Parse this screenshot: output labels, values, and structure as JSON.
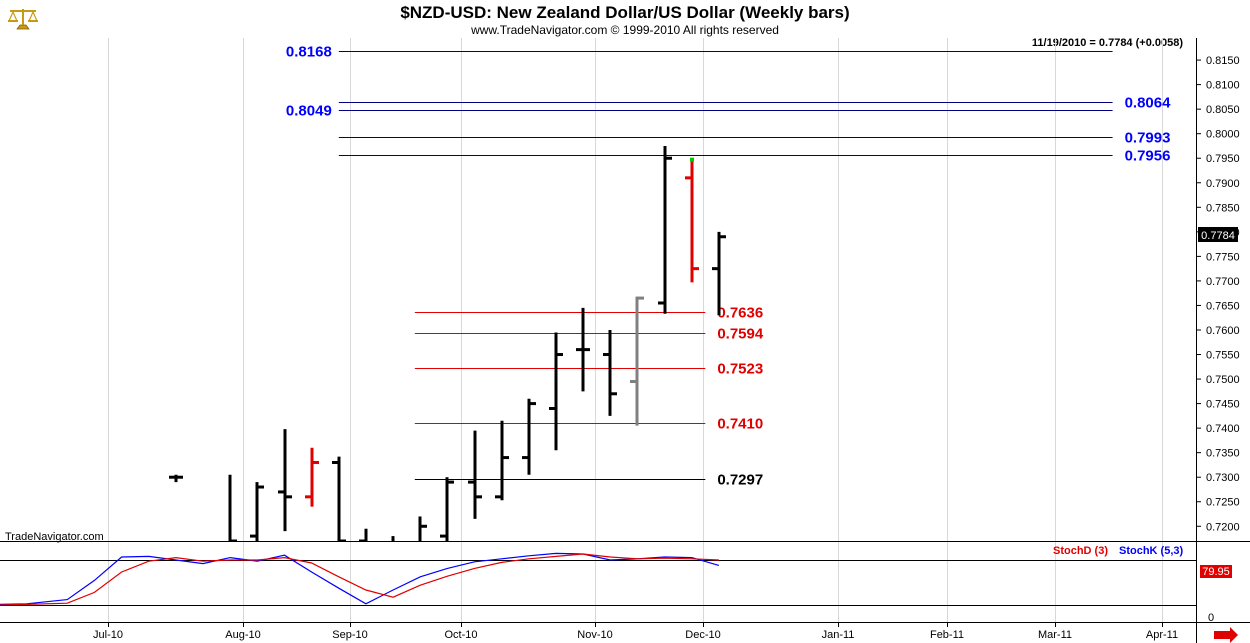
{
  "header": {
    "title": "$NZD-USD:  New Zealand Dollar/US Dollar  (Weekly bars)",
    "copyright": "www.TradeNavigator.com © 1999-2010 All rights reserved",
    "last_quote": "11/19/2010 = 0.7784 (+0.0058)",
    "watermark": "TradeNavigator.com",
    "logo_icon": "scales-logo-icon"
  },
  "colors": {
    "blue": "#0000ff",
    "red": "#e00000",
    "gray": "#808080",
    "green": "#00cc00",
    "navy": "#000080"
  },
  "chart_data": [
    {
      "type": "ohlc",
      "x_axis": {
        "labels": [
          "Jul-10",
          "Aug-10",
          "Sep-10",
          "Oct-10",
          "Nov-10",
          "Dec-10",
          "Jan-11",
          "Feb-11",
          "Mar-11",
          "Apr-11"
        ]
      },
      "y_axis": {
        "ylim": [
          0.717,
          0.8195
        ],
        "ticks": [
          "0.8150",
          "0.8100",
          "0.8050",
          "0.8000",
          "0.7950",
          "0.7900",
          "0.7850",
          "0.7800",
          "0.7750",
          "0.7700",
          "0.7650",
          "0.7600",
          "0.7550",
          "0.7500",
          "0.7450",
          "0.7400",
          "0.7350",
          "0.7300",
          "0.7250",
          "0.7200"
        ]
      },
      "last_price": "0.7784",
      "bars": [
        {
          "w": 6,
          "o": 0.73,
          "h": 0.7305,
          "l": 0.729,
          "c": 0.73,
          "color": "black"
        },
        {
          "w": 8,
          "o": 0.716,
          "h": 0.7305,
          "l": 0.714,
          "c": 0.717,
          "color": "black"
        },
        {
          "w": 9,
          "o": 0.718,
          "h": 0.729,
          "l": 0.716,
          "c": 0.728,
          "color": "black"
        },
        {
          "w": 10,
          "o": 0.727,
          "h": 0.7398,
          "l": 0.719,
          "c": 0.726,
          "color": "black"
        },
        {
          "w": 11,
          "o": 0.726,
          "h": 0.736,
          "l": 0.724,
          "c": 0.733,
          "color": "red"
        },
        {
          "w": 12,
          "o": 0.733,
          "h": 0.7342,
          "l": 0.715,
          "c": 0.717,
          "color": "black"
        },
        {
          "w": 13,
          "o": 0.717,
          "h": 0.7195,
          "l": 0.714,
          "c": 0.715,
          "color": "black"
        },
        {
          "w": 14,
          "o": 0.712,
          "h": 0.718,
          "l": 0.71,
          "c": 0.716,
          "color": "black"
        },
        {
          "w": 15,
          "o": 0.716,
          "h": 0.722,
          "l": 0.715,
          "c": 0.72,
          "color": "black"
        },
        {
          "w": 16,
          "o": 0.718,
          "h": 0.73,
          "l": 0.717,
          "c": 0.729,
          "color": "black"
        },
        {
          "w": 17,
          "o": 0.729,
          "h": 0.7395,
          "l": 0.7215,
          "c": 0.726,
          "color": "black"
        },
        {
          "w": 18,
          "o": 0.726,
          "h": 0.7415,
          "l": 0.7253,
          "c": 0.734,
          "color": "black"
        },
        {
          "w": 19,
          "o": 0.734,
          "h": 0.746,
          "l": 0.7305,
          "c": 0.745,
          "color": "black"
        },
        {
          "w": 20,
          "o": 0.744,
          "h": 0.7595,
          "l": 0.7355,
          "c": 0.755,
          "color": "black"
        },
        {
          "w": 21,
          "o": 0.756,
          "h": 0.7645,
          "l": 0.7475,
          "c": 0.756,
          "color": "black"
        },
        {
          "w": 22,
          "o": 0.755,
          "h": 0.76,
          "l": 0.7425,
          "c": 0.747,
          "color": "black"
        },
        {
          "w": 23,
          "o": 0.7495,
          "h": 0.7668,
          "l": 0.7405,
          "c": 0.7665,
          "color": "gray"
        },
        {
          "w": 24,
          "o": 0.7655,
          "h": 0.7975,
          "l": 0.7633,
          "c": 0.795,
          "color": "black"
        },
        {
          "w": 25,
          "o": 0.791,
          "h": 0.7945,
          "l": 0.7697,
          "c": 0.7725,
          "color": "red"
        },
        {
          "w": 26,
          "o": 0.7725,
          "h": 0.78,
          "l": 0.763,
          "c": 0.779,
          "color": "black"
        }
      ],
      "levels": [
        {
          "value": 0.8168,
          "label": "0.8168",
          "color": "navy",
          "label_color": "blue",
          "x1w": 12.0,
          "x2w": 40.5,
          "label_side": "left"
        },
        {
          "value": 0.8064,
          "label": "0.8064",
          "color": "navy",
          "label_color": "blue",
          "x1w": 12.0,
          "x2w": 40.5,
          "label_side": "right"
        },
        {
          "value": 0.8049,
          "label": "0.8049",
          "color": "navy",
          "label_color": "blue",
          "x1w": 12.0,
          "x2w": 40.5,
          "label_side": "left"
        },
        {
          "value": 0.7993,
          "label": "0.7993",
          "color": "navy",
          "label_color": "blue",
          "x1w": 12.0,
          "x2w": 40.5,
          "label_side": "right"
        },
        {
          "value": 0.7956,
          "label": "0.7956",
          "color": "navy",
          "label_color": "blue",
          "x1w": 12.0,
          "x2w": 40.5,
          "label_side": "right"
        },
        {
          "value": 0.7636,
          "label": "0.7636",
          "color": "red",
          "label_color": "red",
          "x1w": 14.8,
          "x2w": 25.5,
          "label_side": "right"
        },
        {
          "value": 0.7594,
          "label": "0.7594",
          "color": "red",
          "label_color": "red",
          "x1w": 14.8,
          "x2w": 25.5,
          "label_side": "right"
        },
        {
          "value": 0.7523,
          "label": "0.7523",
          "color": "red",
          "label_color": "red",
          "x1w": 14.8,
          "x2w": 25.5,
          "label_side": "right"
        },
        {
          "value": 0.741,
          "label": "0.7410",
          "color": "red",
          "label_color": "red",
          "x1w": 14.8,
          "x2w": 25.5,
          "label_side": "right"
        },
        {
          "value": 0.7297,
          "label": "0.7297",
          "color": "black",
          "label_color": "black",
          "x1w": 14.8,
          "x2w": 25.5,
          "label_side": "right"
        }
      ]
    },
    {
      "type": "line",
      "name": "stochastic",
      "legend": [
        {
          "name": "StochD (3)",
          "color": "red"
        },
        {
          "name": "StochK (5,3)",
          "color": "blue"
        }
      ],
      "ylim": [
        0,
        100
      ],
      "reference_line": 80,
      "ticks": [
        "0"
      ],
      "last_value": "79.95",
      "x": [
        -0.5,
        0.5,
        2,
        3,
        4,
        5,
        6,
        7,
        8,
        9,
        10,
        11,
        12,
        13,
        14,
        15,
        16,
        17,
        18,
        19,
        20,
        21,
        22,
        23,
        24,
        25,
        26
      ],
      "series": [
        {
          "name": "StochK (5,3)",
          "values": [
            6,
            7,
            14,
            46,
            85,
            86,
            80,
            74,
            84,
            78,
            88,
            60,
            33,
            7,
            30,
            52,
            66,
            77,
            82,
            87,
            91,
            90,
            80,
            82,
            85,
            84,
            71
          ]
        },
        {
          "name": "StochD (3)",
          "values": [
            5,
            6,
            8,
            26,
            60,
            78,
            84,
            78,
            80,
            80,
            84,
            75,
            52,
            30,
            18,
            38,
            53,
            66,
            76,
            82,
            86,
            90,
            85,
            82,
            83,
            82,
            80
          ]
        }
      ]
    }
  ]
}
